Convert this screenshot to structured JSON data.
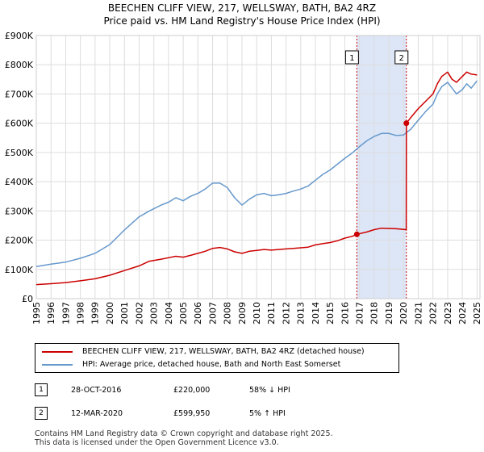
{
  "title": "BEECHEN CLIFF VIEW, 217, WELLSWAY, BATH, BA2 4RZ",
  "subtitle": "Price paid vs. HM Land Registry's House Price Index (HPI)",
  "colors": {
    "property": "#cc0000",
    "hpi": "#6699cc",
    "shade": "#dde6f7",
    "grid": "#dddddd",
    "marker_line": "#cc0000"
  },
  "chart_data": {
    "type": "line",
    "title": "BEECHEN CLIFF VIEW, 217, WELLSWAY, BATH, BA2 4RZ",
    "subtitle": "Price paid vs. HM Land Registry's House Price Index (HPI)",
    "xlabel": "",
    "ylabel": "",
    "xlim": [
      1995,
      2025.2
    ],
    "ylim": [
      0,
      900000
    ],
    "y_ticks": [
      0,
      100000,
      200000,
      300000,
      400000,
      500000,
      600000,
      700000,
      800000,
      900000
    ],
    "y_tick_labels": [
      "£0",
      "£100K",
      "£200K",
      "£300K",
      "£400K",
      "£500K",
      "£600K",
      "£700K",
      "£800K",
      "£900K"
    ],
    "x_ticks": [
      1995,
      1996,
      1997,
      1998,
      1999,
      2000,
      2001,
      2002,
      2003,
      2004,
      2005,
      2006,
      2007,
      2008,
      2009,
      2010,
      2011,
      2012,
      2013,
      2014,
      2015,
      2016,
      2017,
      2018,
      2019,
      2020,
      2021,
      2022,
      2023,
      2024,
      2025
    ],
    "x_tick_labels": [
      "1995",
      "1996",
      "1997",
      "1998",
      "1999",
      "2000",
      "2001",
      "2002",
      "2003",
      "2004",
      "2005",
      "2006",
      "2007",
      "2008",
      "2009",
      "2010",
      "2011",
      "2012",
      "2013",
      "2014",
      "2015",
      "2016",
      "2017",
      "2018",
      "2019",
      "2020",
      "2021",
      "2022",
      "2023",
      "2024",
      "2025"
    ],
    "grid": true,
    "shaded_period": [
      2016.82,
      2020.19
    ],
    "series": [
      {
        "name": "BEECHEN CLIFF VIEW, 217, WELLSWAY, BATH, BA2 4RZ (detached house)",
        "x": [
          1995.0,
          1996.0,
          1997.0,
          1998.0,
          1999.0,
          2000.0,
          2001.0,
          2002.0,
          2002.7,
          2003.5,
          2004.0,
          2004.5,
          2005.0,
          2005.5,
          2006.0,
          2006.5,
          2007.0,
          2007.5,
          2008.0,
          2008.5,
          2009.0,
          2009.5,
          2010.0,
          2010.5,
          2011.0,
          2011.5,
          2012.0,
          2012.5,
          2013.0,
          2013.5,
          2014.0,
          2014.5,
          2015.0,
          2015.5,
          2016.0,
          2016.5,
          2016.82,
          2017.5,
          2018.0,
          2018.5,
          2019.0,
          2019.5,
          2020.0,
          2020.18,
          2020.19,
          2020.5,
          2021.0,
          2021.5,
          2022.0,
          2022.3,
          2022.6,
          2023.0,
          2023.3,
          2023.6,
          2024.0,
          2024.3,
          2024.6,
          2025.0
        ],
        "y": [
          48000,
          51000,
          55000,
          61000,
          68000,
          80000,
          96000,
          112000,
          128000,
          135000,
          140000,
          145000,
          142000,
          148000,
          155000,
          162000,
          172000,
          175000,
          170000,
          160000,
          155000,
          162000,
          165000,
          168000,
          166000,
          168000,
          170000,
          172000,
          174000,
          176000,
          184000,
          188000,
          192000,
          198000,
          207000,
          213000,
          220000,
          228000,
          236000,
          241000,
          240000,
          239000,
          237000,
          236000,
          599950,
          620000,
          650000,
          675000,
          700000,
          735000,
          760000,
          775000,
          750000,
          740000,
          760000,
          775000,
          768000,
          765000
        ]
      },
      {
        "name": "HPI: Average price, detached house, Bath and North East Somerset",
        "x": [
          1995.0,
          1996.0,
          1997.0,
          1998.0,
          1999.0,
          2000.0,
          2001.0,
          2002.0,
          2002.7,
          2003.5,
          2004.0,
          2004.5,
          2005.0,
          2005.5,
          2006.0,
          2006.5,
          2007.0,
          2007.5,
          2008.0,
          2008.5,
          2009.0,
          2009.5,
          2010.0,
          2010.5,
          2011.0,
          2011.5,
          2012.0,
          2012.5,
          2013.0,
          2013.5,
          2014.0,
          2014.5,
          2015.0,
          2015.5,
          2016.0,
          2016.5,
          2017.0,
          2017.5,
          2018.0,
          2018.5,
          2019.0,
          2019.5,
          2020.0,
          2020.5,
          2021.0,
          2021.5,
          2022.0,
          2022.3,
          2022.6,
          2023.0,
          2023.3,
          2023.6,
          2024.0,
          2024.3,
          2024.6,
          2025.0
        ],
        "y": [
          110000,
          118000,
          125000,
          138000,
          155000,
          185000,
          235000,
          280000,
          300000,
          320000,
          330000,
          345000,
          335000,
          350000,
          360000,
          375000,
          395000,
          395000,
          380000,
          345000,
          320000,
          340000,
          355000,
          360000,
          352000,
          355000,
          360000,
          368000,
          375000,
          385000,
          405000,
          425000,
          440000,
          460000,
          480000,
          498000,
          520000,
          540000,
          555000,
          565000,
          565000,
          558000,
          560000,
          580000,
          610000,
          640000,
          665000,
          700000,
          725000,
          740000,
          720000,
          700000,
          715000,
          735000,
          720000,
          745000
        ]
      }
    ],
    "annotations": [
      {
        "label": "1",
        "x": 2016.82,
        "y": 220000
      },
      {
        "label": "2",
        "x": 2020.19,
        "y": 599950
      }
    ]
  },
  "legend": {
    "items": [
      {
        "label": "BEECHEN CLIFF VIEW, 217, WELLSWAY, BATH, BA2 4RZ (detached house)"
      },
      {
        "label": "HPI: Average price, detached house, Bath and North East Somerset"
      }
    ]
  },
  "transactions": [
    {
      "num": "1",
      "date": "28-OCT-2016",
      "price": "£220,000",
      "hpi": "58% ↓ HPI"
    },
    {
      "num": "2",
      "date": "12-MAR-2020",
      "price": "£599,950",
      "hpi": "5% ↑ HPI"
    }
  ],
  "footer": {
    "line1": "Contains HM Land Registry data © Crown copyright and database right 2025.",
    "line2": "This data is licensed under the Open Government Licence v3.0."
  }
}
